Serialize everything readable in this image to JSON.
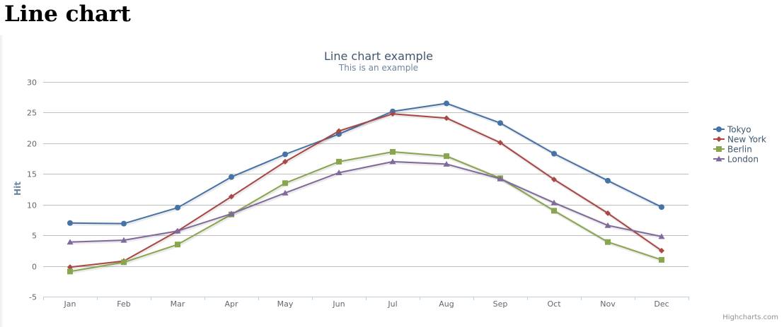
{
  "page": {
    "heading": "Line chart",
    "credits": "Highcharts.com"
  },
  "chart_data": {
    "type": "line",
    "title": "Line chart example",
    "subtitle": "This is an example",
    "xlabel": "",
    "ylabel": "Hit",
    "categories": [
      "Jan",
      "Feb",
      "Mar",
      "Apr",
      "May",
      "Jun",
      "Jul",
      "Aug",
      "Sep",
      "Oct",
      "Nov",
      "Dec"
    ],
    "ylim": [
      -5,
      30
    ],
    "yticks": [
      -5,
      0,
      5,
      10,
      15,
      20,
      25,
      30
    ],
    "grid": true,
    "legend": "right",
    "series": [
      {
        "name": "Tokyo",
        "color": "#4572A7",
        "marker": "circle",
        "values": [
          7.0,
          6.9,
          9.5,
          14.5,
          18.2,
          21.5,
          25.2,
          26.5,
          23.3,
          18.3,
          13.9,
          9.6
        ]
      },
      {
        "name": "New York",
        "color": "#AA4643",
        "marker": "diamond",
        "values": [
          -0.2,
          0.8,
          5.7,
          11.3,
          17.0,
          22.0,
          24.8,
          24.1,
          20.1,
          14.1,
          8.6,
          2.5
        ]
      },
      {
        "name": "Berlin",
        "color": "#89A54E",
        "marker": "square",
        "values": [
          -0.9,
          0.6,
          3.5,
          8.4,
          13.5,
          17.0,
          18.6,
          17.9,
          14.3,
          9.0,
          3.9,
          1.0
        ]
      },
      {
        "name": "London",
        "color": "#80699B",
        "marker": "triangle",
        "values": [
          3.9,
          4.2,
          5.7,
          8.5,
          11.9,
          15.2,
          17.0,
          16.6,
          14.2,
          10.3,
          6.6,
          4.8
        ]
      }
    ]
  }
}
